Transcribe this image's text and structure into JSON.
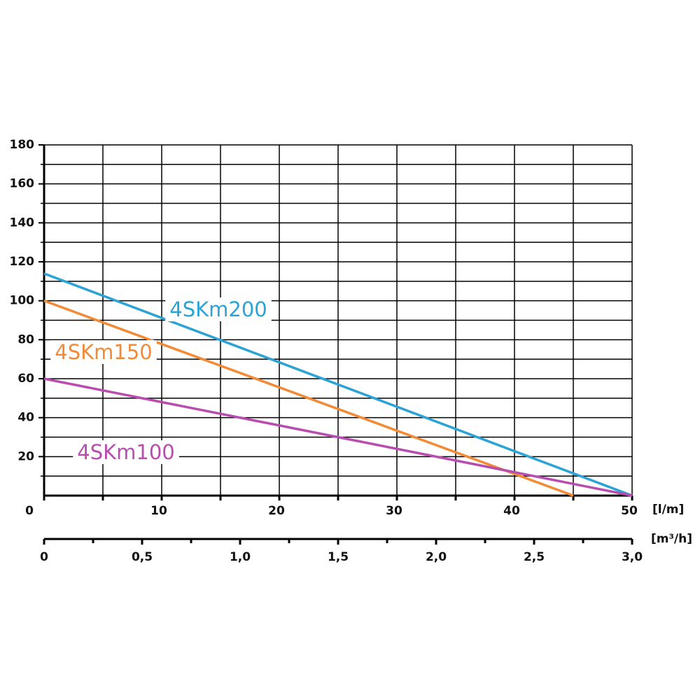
{
  "chart_data": {
    "type": "line",
    "x": [
      0,
      45,
      50
    ],
    "series": [
      {
        "name": "4SKm200",
        "color": "#2ba3d4",
        "values": [
          114,
          11.4,
          0
        ]
      },
      {
        "name": "4SKm150",
        "color": "#f28a36",
        "values": [
          100,
          0,
          null
        ]
      },
      {
        "name": "4SKm100",
        "color": "#b84daf",
        "values": [
          60,
          6,
          0
        ]
      }
    ],
    "xlim": [
      0,
      50
    ],
    "xticks": [
      0,
      10,
      20,
      30,
      40,
      50
    ],
    "xlabel": "[l/m]",
    "ylim": [
      0,
      180
    ],
    "yticks": [
      20,
      40,
      60,
      80,
      100,
      120,
      140,
      160,
      180
    ],
    "x2lim": [
      0,
      3
    ],
    "x2label": "[m³/h]",
    "x2ticks": [
      0,
      {
        "value": 0.5,
        "label": "0,5"
      },
      {
        "value": 1,
        "label": "1,0"
      },
      {
        "value": 1.5,
        "label": "1,5"
      },
      {
        "value": 2,
        "label": "2,0"
      },
      {
        "value": 2.5,
        "label": "2,5"
      },
      {
        "value": 3,
        "label": "3,0"
      }
    ],
    "grid": true
  }
}
